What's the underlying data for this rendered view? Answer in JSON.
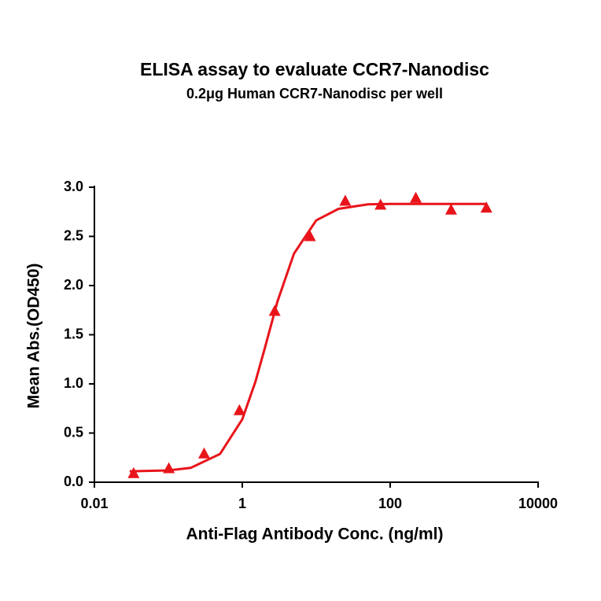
{
  "chart_data": {
    "type": "scatter",
    "title": "ELISA assay to evaluate CCR7-Nanodisc",
    "subtitle": "0.2μg Human CCR7-Nanodisc per well",
    "x_label": "Anti-Flag Antibody Conc. (ng/ml)",
    "y_label": "Mean Abs.(OD450)",
    "x_scale": "log",
    "xlim": [
      0.01,
      10000
    ],
    "xticks": [
      0.01,
      1,
      100,
      10000
    ],
    "ylim": [
      0,
      3
    ],
    "yticks": [
      {
        "value": 0,
        "label": "0.0"
      },
      {
        "value": 0.5,
        "label": "0.5"
      },
      {
        "value": 1,
        "label": "1.0"
      },
      {
        "value": 1.5,
        "label": "1.5"
      },
      {
        "value": 2,
        "label": "2.0"
      },
      {
        "value": 2.5,
        "label": "2.5"
      },
      {
        "value": 3,
        "label": "3.0"
      }
    ],
    "series": [
      {
        "type": "scatter",
        "marker": "triangle",
        "color": "#e8141a",
        "x": [
          0.0339,
          0.1016,
          0.3048,
          0.9145,
          2.743,
          8.23,
          24.69,
          74.07,
          222.2,
          666.7,
          2000
        ],
        "values": [
          0.09,
          0.14,
          0.29,
          0.73,
          1.74,
          2.5,
          2.86,
          2.82,
          2.89,
          2.77,
          2.79
        ]
      },
      {
        "type": "line",
        "color": "#e8141a",
        "x": [
          0.03,
          0.1,
          0.2,
          0.5,
          1,
          1.5,
          2,
          3,
          5,
          10,
          20,
          50,
          100,
          500,
          2000
        ],
        "values": [
          0.111,
          0.12,
          0.146,
          0.287,
          0.64,
          1.02,
          1.354,
          1.84,
          2.325,
          2.663,
          2.78,
          2.826,
          2.83,
          2.83,
          2.83
        ]
      }
    ]
  }
}
